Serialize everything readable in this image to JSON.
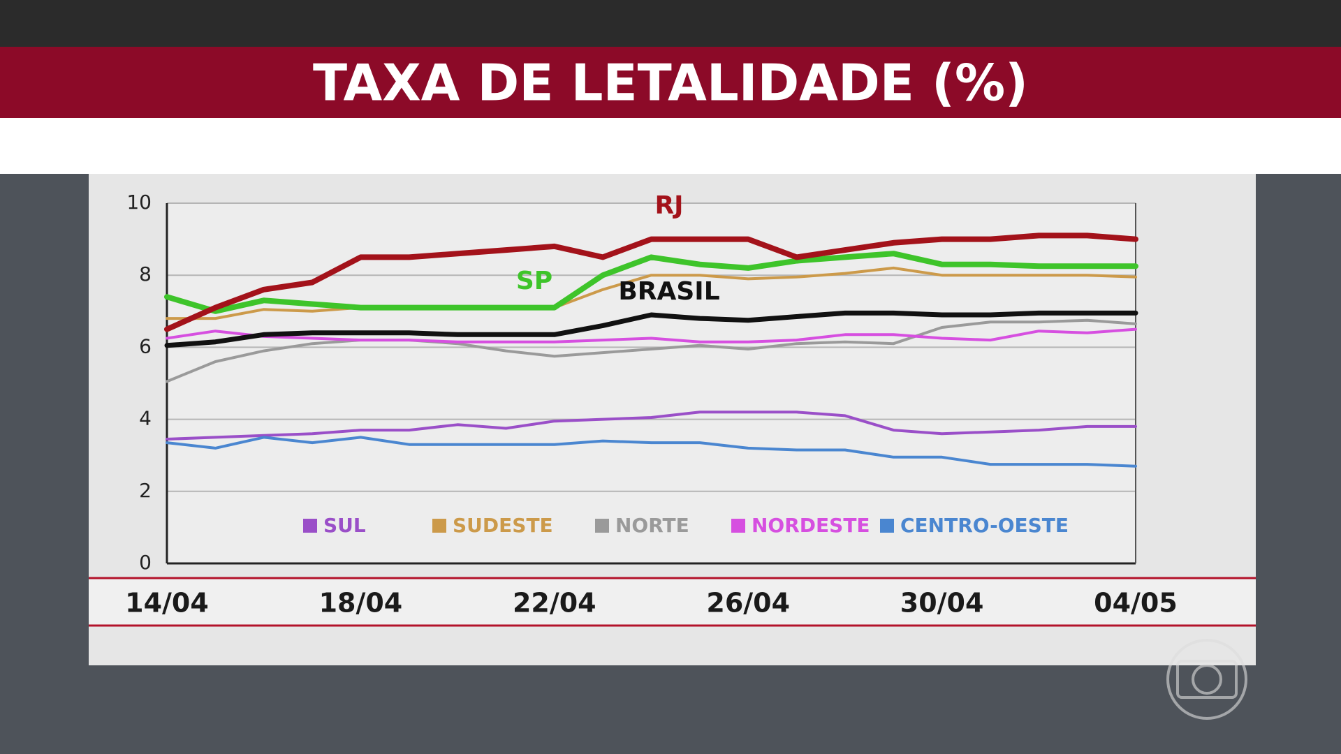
{
  "chart_data": {
    "type": "line",
    "title": "TAXA DE LETALIDADE (%)",
    "categories": [
      "14/04",
      null,
      null,
      null,
      "18/04",
      null,
      null,
      null,
      "22/04",
      null,
      null,
      null,
      "26/04",
      null,
      null,
      null,
      "30/04",
      null,
      null,
      null,
      "04/05"
    ],
    "series": [
      {
        "name": "RJ",
        "color": "#a3121a",
        "values": [
          6.5,
          7.1,
          7.6,
          7.8,
          8.5,
          8.5,
          8.6,
          8.7,
          8.8,
          8.5,
          9.0,
          9.0,
          9.0,
          8.5,
          8.7,
          8.9,
          9.0,
          9.0,
          9.1,
          9.1,
          9.0
        ]
      },
      {
        "name": "SP",
        "color": "#3ec42a",
        "values": [
          7.4,
          7.0,
          7.3,
          7.2,
          7.1,
          7.1,
          7.1,
          7.1,
          7.1,
          8.0,
          8.5,
          8.3,
          8.2,
          8.4,
          8.5,
          8.6,
          8.3,
          8.3,
          8.25,
          8.25,
          8.25
        ]
      },
      {
        "name": "BRASIL",
        "color": "#111111",
        "values": [
          6.05,
          6.15,
          6.35,
          6.4,
          6.4,
          6.4,
          6.35,
          6.35,
          6.35,
          6.6,
          6.9,
          6.8,
          6.75,
          6.85,
          6.95,
          6.95,
          6.9,
          6.9,
          6.95,
          6.95,
          6.95
        ]
      },
      {
        "name": "SUL",
        "color": "#9a4fc8",
        "values": [
          3.45,
          3.5,
          3.55,
          3.6,
          3.7,
          3.7,
          3.85,
          3.75,
          3.95,
          4.0,
          4.05,
          4.2,
          4.2,
          4.2,
          4.1,
          3.7,
          3.6,
          3.65,
          3.7,
          3.8,
          3.8
        ]
      },
      {
        "name": "SUDESTE",
        "color": "#cc9a4a",
        "values": [
          6.8,
          6.8,
          7.05,
          7.0,
          7.1,
          7.1,
          7.1,
          7.1,
          7.1,
          7.6,
          8.0,
          8.0,
          7.9,
          7.95,
          8.05,
          8.2,
          8.0,
          8.0,
          8.0,
          8.0,
          7.95
        ]
      },
      {
        "name": "NORTE",
        "color": "#9a9a9a",
        "values": [
          5.05,
          5.6,
          5.9,
          6.1,
          6.2,
          6.2,
          6.1,
          5.9,
          5.75,
          5.85,
          5.95,
          6.05,
          5.95,
          6.1,
          6.15,
          6.1,
          6.55,
          6.7,
          6.7,
          6.75,
          6.65
        ]
      },
      {
        "name": "NORDESTE",
        "color": "#d64fe0",
        "values": [
          6.25,
          6.45,
          6.3,
          6.25,
          6.2,
          6.2,
          6.15,
          6.15,
          6.15,
          6.2,
          6.25,
          6.15,
          6.15,
          6.2,
          6.35,
          6.35,
          6.25,
          6.2,
          6.45,
          6.4,
          6.5
        ]
      },
      {
        "name": "CENTRO-OESTE",
        "color": "#4a86d0",
        "values": [
          3.35,
          3.2,
          3.5,
          3.35,
          3.5,
          3.3,
          3.3,
          3.3,
          3.3,
          3.4,
          3.35,
          3.35,
          3.2,
          3.15,
          3.15,
          2.95,
          2.95,
          2.75,
          2.75,
          2.75,
          2.7
        ]
      }
    ],
    "ylim": [
      0,
      10
    ],
    "yticks": [
      0,
      2,
      4,
      6,
      8,
      10
    ],
    "grid": true
  }
}
